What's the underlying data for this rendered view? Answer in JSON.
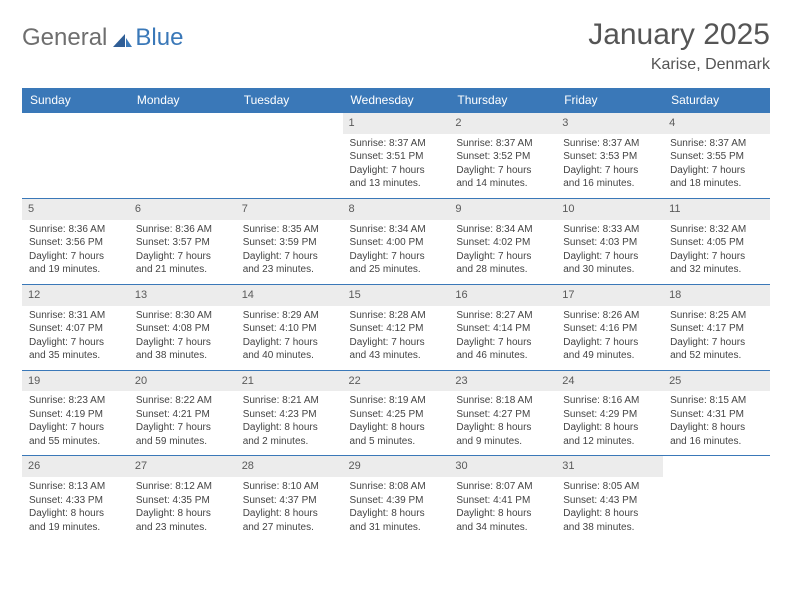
{
  "logo": {
    "part1": "General",
    "part2": "Blue"
  },
  "title": "January 2025",
  "location": "Karise, Denmark",
  "colors": {
    "header_bg": "#3a78b8",
    "header_text": "#ffffff",
    "daynum_bg": "#ececec",
    "row_border": "#3a78b8",
    "text": "#444444",
    "title_text": "#555555"
  },
  "day_headers": [
    "Sunday",
    "Monday",
    "Tuesday",
    "Wednesday",
    "Thursday",
    "Friday",
    "Saturday"
  ],
  "weeks": [
    [
      {
        "day": "",
        "sunrise": "",
        "sunset": "",
        "daylight1": "",
        "daylight2": ""
      },
      {
        "day": "",
        "sunrise": "",
        "sunset": "",
        "daylight1": "",
        "daylight2": ""
      },
      {
        "day": "",
        "sunrise": "",
        "sunset": "",
        "daylight1": "",
        "daylight2": ""
      },
      {
        "day": "1",
        "sunrise": "Sunrise: 8:37 AM",
        "sunset": "Sunset: 3:51 PM",
        "daylight1": "Daylight: 7 hours",
        "daylight2": "and 13 minutes."
      },
      {
        "day": "2",
        "sunrise": "Sunrise: 8:37 AM",
        "sunset": "Sunset: 3:52 PM",
        "daylight1": "Daylight: 7 hours",
        "daylight2": "and 14 minutes."
      },
      {
        "day": "3",
        "sunrise": "Sunrise: 8:37 AM",
        "sunset": "Sunset: 3:53 PM",
        "daylight1": "Daylight: 7 hours",
        "daylight2": "and 16 minutes."
      },
      {
        "day": "4",
        "sunrise": "Sunrise: 8:37 AM",
        "sunset": "Sunset: 3:55 PM",
        "daylight1": "Daylight: 7 hours",
        "daylight2": "and 18 minutes."
      }
    ],
    [
      {
        "day": "5",
        "sunrise": "Sunrise: 8:36 AM",
        "sunset": "Sunset: 3:56 PM",
        "daylight1": "Daylight: 7 hours",
        "daylight2": "and 19 minutes."
      },
      {
        "day": "6",
        "sunrise": "Sunrise: 8:36 AM",
        "sunset": "Sunset: 3:57 PM",
        "daylight1": "Daylight: 7 hours",
        "daylight2": "and 21 minutes."
      },
      {
        "day": "7",
        "sunrise": "Sunrise: 8:35 AM",
        "sunset": "Sunset: 3:59 PM",
        "daylight1": "Daylight: 7 hours",
        "daylight2": "and 23 minutes."
      },
      {
        "day": "8",
        "sunrise": "Sunrise: 8:34 AM",
        "sunset": "Sunset: 4:00 PM",
        "daylight1": "Daylight: 7 hours",
        "daylight2": "and 25 minutes."
      },
      {
        "day": "9",
        "sunrise": "Sunrise: 8:34 AM",
        "sunset": "Sunset: 4:02 PM",
        "daylight1": "Daylight: 7 hours",
        "daylight2": "and 28 minutes."
      },
      {
        "day": "10",
        "sunrise": "Sunrise: 8:33 AM",
        "sunset": "Sunset: 4:03 PM",
        "daylight1": "Daylight: 7 hours",
        "daylight2": "and 30 minutes."
      },
      {
        "day": "11",
        "sunrise": "Sunrise: 8:32 AM",
        "sunset": "Sunset: 4:05 PM",
        "daylight1": "Daylight: 7 hours",
        "daylight2": "and 32 minutes."
      }
    ],
    [
      {
        "day": "12",
        "sunrise": "Sunrise: 8:31 AM",
        "sunset": "Sunset: 4:07 PM",
        "daylight1": "Daylight: 7 hours",
        "daylight2": "and 35 minutes."
      },
      {
        "day": "13",
        "sunrise": "Sunrise: 8:30 AM",
        "sunset": "Sunset: 4:08 PM",
        "daylight1": "Daylight: 7 hours",
        "daylight2": "and 38 minutes."
      },
      {
        "day": "14",
        "sunrise": "Sunrise: 8:29 AM",
        "sunset": "Sunset: 4:10 PM",
        "daylight1": "Daylight: 7 hours",
        "daylight2": "and 40 minutes."
      },
      {
        "day": "15",
        "sunrise": "Sunrise: 8:28 AM",
        "sunset": "Sunset: 4:12 PM",
        "daylight1": "Daylight: 7 hours",
        "daylight2": "and 43 minutes."
      },
      {
        "day": "16",
        "sunrise": "Sunrise: 8:27 AM",
        "sunset": "Sunset: 4:14 PM",
        "daylight1": "Daylight: 7 hours",
        "daylight2": "and 46 minutes."
      },
      {
        "day": "17",
        "sunrise": "Sunrise: 8:26 AM",
        "sunset": "Sunset: 4:16 PM",
        "daylight1": "Daylight: 7 hours",
        "daylight2": "and 49 minutes."
      },
      {
        "day": "18",
        "sunrise": "Sunrise: 8:25 AM",
        "sunset": "Sunset: 4:17 PM",
        "daylight1": "Daylight: 7 hours",
        "daylight2": "and 52 minutes."
      }
    ],
    [
      {
        "day": "19",
        "sunrise": "Sunrise: 8:23 AM",
        "sunset": "Sunset: 4:19 PM",
        "daylight1": "Daylight: 7 hours",
        "daylight2": "and 55 minutes."
      },
      {
        "day": "20",
        "sunrise": "Sunrise: 8:22 AM",
        "sunset": "Sunset: 4:21 PM",
        "daylight1": "Daylight: 7 hours",
        "daylight2": "and 59 minutes."
      },
      {
        "day": "21",
        "sunrise": "Sunrise: 8:21 AM",
        "sunset": "Sunset: 4:23 PM",
        "daylight1": "Daylight: 8 hours",
        "daylight2": "and 2 minutes."
      },
      {
        "day": "22",
        "sunrise": "Sunrise: 8:19 AM",
        "sunset": "Sunset: 4:25 PM",
        "daylight1": "Daylight: 8 hours",
        "daylight2": "and 5 minutes."
      },
      {
        "day": "23",
        "sunrise": "Sunrise: 8:18 AM",
        "sunset": "Sunset: 4:27 PM",
        "daylight1": "Daylight: 8 hours",
        "daylight2": "and 9 minutes."
      },
      {
        "day": "24",
        "sunrise": "Sunrise: 8:16 AM",
        "sunset": "Sunset: 4:29 PM",
        "daylight1": "Daylight: 8 hours",
        "daylight2": "and 12 minutes."
      },
      {
        "day": "25",
        "sunrise": "Sunrise: 8:15 AM",
        "sunset": "Sunset: 4:31 PM",
        "daylight1": "Daylight: 8 hours",
        "daylight2": "and 16 minutes."
      }
    ],
    [
      {
        "day": "26",
        "sunrise": "Sunrise: 8:13 AM",
        "sunset": "Sunset: 4:33 PM",
        "daylight1": "Daylight: 8 hours",
        "daylight2": "and 19 minutes."
      },
      {
        "day": "27",
        "sunrise": "Sunrise: 8:12 AM",
        "sunset": "Sunset: 4:35 PM",
        "daylight1": "Daylight: 8 hours",
        "daylight2": "and 23 minutes."
      },
      {
        "day": "28",
        "sunrise": "Sunrise: 8:10 AM",
        "sunset": "Sunset: 4:37 PM",
        "daylight1": "Daylight: 8 hours",
        "daylight2": "and 27 minutes."
      },
      {
        "day": "29",
        "sunrise": "Sunrise: 8:08 AM",
        "sunset": "Sunset: 4:39 PM",
        "daylight1": "Daylight: 8 hours",
        "daylight2": "and 31 minutes."
      },
      {
        "day": "30",
        "sunrise": "Sunrise: 8:07 AM",
        "sunset": "Sunset: 4:41 PM",
        "daylight1": "Daylight: 8 hours",
        "daylight2": "and 34 minutes."
      },
      {
        "day": "31",
        "sunrise": "Sunrise: 8:05 AM",
        "sunset": "Sunset: 4:43 PM",
        "daylight1": "Daylight: 8 hours",
        "daylight2": "and 38 minutes."
      },
      {
        "day": "",
        "sunrise": "",
        "sunset": "",
        "daylight1": "",
        "daylight2": ""
      }
    ]
  ]
}
